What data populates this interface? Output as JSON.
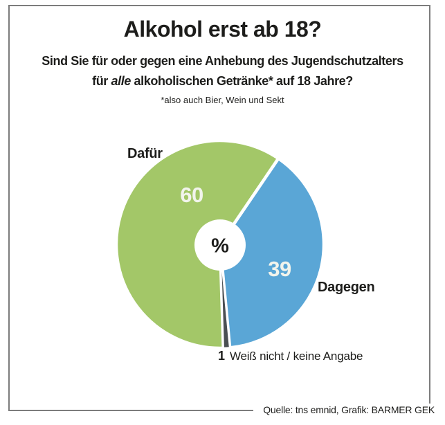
{
  "header": {
    "title": "Alkohol erst ab 18?",
    "subtitle_line1": "Sind Sie für oder gegen eine Anhebung des Jugendschutzalters",
    "subtitle_line2_pre": "für ",
    "subtitle_line2_italic": "alle",
    "subtitle_line2_post": " alkoholischen Getränke* auf 18 Jahre?",
    "footnote": "*also auch Bier, Wein und Sekt"
  },
  "chart_data": {
    "type": "pie",
    "title": "Alkohol erst ab 18?",
    "unit": "%",
    "center_label": "%",
    "direction": "clockwise",
    "start_angle_deg": 34.2,
    "donut": true,
    "slices": [
      {
        "label": "Dagegen",
        "value": 39,
        "color": "#5aa6d6"
      },
      {
        "label": "Weiß nicht / keine Angabe",
        "value": 1,
        "color": "#4a4f53"
      },
      {
        "label": "Dafür",
        "value": 60,
        "color": "#a3c768"
      }
    ],
    "legend_position": "around-pie"
  },
  "footer": {
    "source": "Quelle: tns emnid, Grafik: BARMER GEK"
  },
  "colors": {
    "dafuer_green": "#a3c768",
    "dagegen_blue": "#5aa6d6",
    "weiss_nicht_dark": "#4a4f53",
    "value_label": "#f2f4ec",
    "text": "#1d1d1b",
    "frame": "#7c7c7c"
  }
}
